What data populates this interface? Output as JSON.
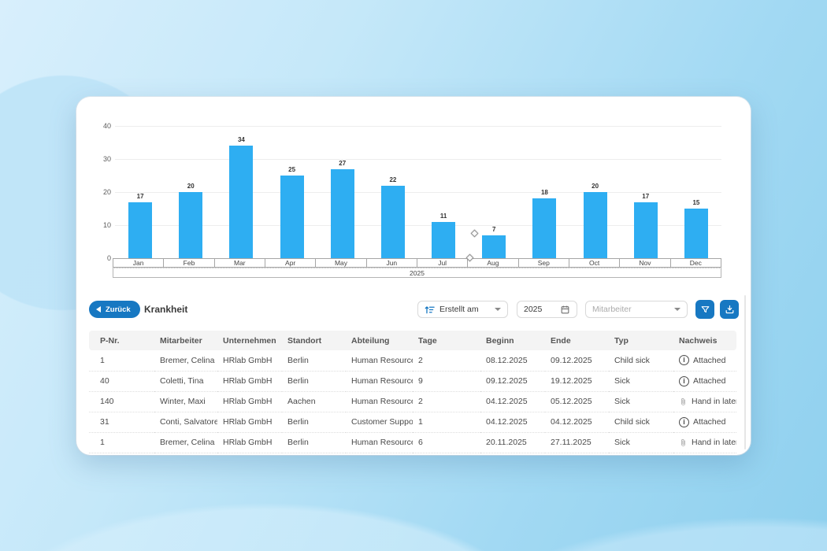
{
  "colors": {
    "accent": "#1778c2",
    "bar": "#2eaef2"
  },
  "chart_data": {
    "type": "bar",
    "title": "",
    "categories": [
      "Jan",
      "Feb",
      "Mar",
      "Apr",
      "May",
      "Jun",
      "Jul",
      "Aug",
      "Sep",
      "Oct",
      "Nov",
      "Dec"
    ],
    "values": [
      17,
      20,
      34,
      25,
      27,
      22,
      11,
      7,
      18,
      20,
      17,
      15
    ],
    "xlabel": "2025",
    "ylabel": "",
    "ylim": [
      0,
      40
    ],
    "y_ticks": [
      0,
      10,
      20,
      30,
      40
    ],
    "grid": true,
    "legend": "none",
    "bar_color": "#2eaef2"
  },
  "toolbar": {
    "back_label": "Zurück",
    "title": "Krankheit",
    "sort_dropdown": {
      "label": "Erstellt am",
      "icon": "sort-numeric-icon"
    },
    "year_input": {
      "value": "2025",
      "icon": "calendar-icon"
    },
    "employee_dropdown": {
      "placeholder": "Mitarbeiter"
    },
    "filter_button": {
      "icon": "funnel-icon"
    },
    "download_button": {
      "icon": "download-icon"
    }
  },
  "table": {
    "columns": [
      "P-Nr.",
      "Mitarbeiter",
      "Unternehmen",
      "Standort",
      "Abteilung",
      "Tage",
      "Beginn",
      "Ende",
      "Typ",
      "Nachweis"
    ],
    "rows": [
      {
        "cells": [
          "1",
          "Bremer, Celina",
          "HRlab GmbH",
          "Berlin",
          "Human Resources",
          "2",
          "08.12.2025",
          "09.12.2025",
          "Child sick"
        ],
        "nachweis": {
          "icon": "info-circle-icon",
          "label": "Attached"
        }
      },
      {
        "cells": [
          "40",
          "Coletti, Tina",
          "HRlab GmbH",
          "Berlin",
          "Human Resources",
          "9",
          "09.12.2025",
          "19.12.2025",
          "Sick"
        ],
        "nachweis": {
          "icon": "info-circle-icon",
          "label": "Attached"
        }
      },
      {
        "cells": [
          "140",
          "Winter, Maxi",
          "HRlab GmbH",
          "Aachen",
          "Human Resources",
          "2",
          "04.12.2025",
          "05.12.2025",
          "Sick"
        ],
        "nachweis": {
          "icon": "paperclip-icon",
          "label": "Hand in later"
        }
      },
      {
        "cells": [
          "31",
          "Conti, Salvatore",
          "HRlab GmbH",
          "Berlin",
          "Customer Support",
          "1",
          "04.12.2025",
          "04.12.2025",
          "Child sick"
        ],
        "nachweis": {
          "icon": "info-circle-icon",
          "label": "Attached"
        }
      },
      {
        "cells": [
          "1",
          "Bremer, Celina",
          "HRlab GmbH",
          "Berlin",
          "Human Resources",
          "6",
          "20.11.2025",
          "27.11.2025",
          "Sick"
        ],
        "nachweis": {
          "icon": "paperclip-icon",
          "label": "Hand in later"
        }
      }
    ]
  }
}
